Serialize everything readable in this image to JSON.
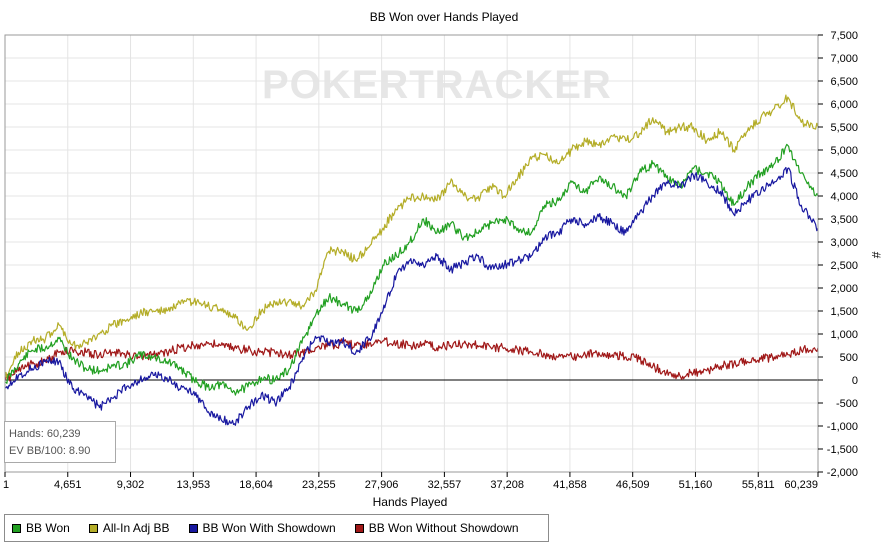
{
  "chart_data": {
    "type": "line",
    "title": "BB Won over Hands Played",
    "xlabel": "Hands Played",
    "ylabel": "#",
    "watermark": "POKERTRACKER",
    "xlim": [
      1,
      60239
    ],
    "ylim": [
      -2000,
      7500
    ],
    "x_ticks": [
      1,
      4651,
      9302,
      13953,
      18604,
      23255,
      27906,
      32557,
      37208,
      41858,
      46509,
      51160,
      55811,
      60239
    ],
    "x_tick_labels": [
      "1",
      "4,651",
      "9,302",
      "13,953",
      "18,604",
      "23,255",
      "27,906",
      "32,557",
      "37,208",
      "41,858",
      "46,509",
      "51,160",
      "55,811",
      "60,239"
    ],
    "y_ticks": [
      -2000,
      -1500,
      -1000,
      -500,
      0,
      500,
      1000,
      1500,
      2000,
      2500,
      3000,
      3500,
      4000,
      4500,
      5000,
      5500,
      6000,
      6500,
      7000,
      7500
    ],
    "y_tick_labels": [
      "-2,000",
      "-1,500",
      "-1,000",
      "-500",
      "0",
      "500",
      "1,000",
      "1,500",
      "2,000",
      "2,500",
      "3,000",
      "3,500",
      "4,000",
      "4,500",
      "5,000",
      "5,500",
      "6,000",
      "6,500",
      "7,000",
      "7,500"
    ],
    "grid": true,
    "legend_position": "bottom-left",
    "x": [
      1,
      1000,
      2000,
      3000,
      4000,
      5000,
      6000,
      7000,
      8000,
      9000,
      10000,
      11000,
      12000,
      13000,
      14000,
      15000,
      16000,
      17000,
      18000,
      19000,
      20000,
      21000,
      22000,
      23000,
      24000,
      25000,
      26000,
      27000,
      28000,
      29000,
      30000,
      31000,
      32000,
      33000,
      34000,
      35000,
      36000,
      37000,
      38000,
      39000,
      40000,
      41000,
      42000,
      43000,
      44000,
      45000,
      46000,
      47000,
      48000,
      49000,
      50000,
      51000,
      52000,
      53000,
      54000,
      55000,
      56000,
      57000,
      58000,
      59000,
      60239
    ],
    "series": [
      {
        "name": "BB Won",
        "color": "#22a022",
        "values": [
          -50,
          350,
          650,
          700,
          900,
          450,
          250,
          200,
          300,
          350,
          550,
          500,
          400,
          250,
          0,
          -150,
          -100,
          -250,
          -150,
          50,
          0,
          200,
          800,
          1400,
          1800,
          1650,
          1500,
          1800,
          2500,
          2700,
          3000,
          3500,
          3200,
          3400,
          3100,
          3200,
          3400,
          3500,
          3300,
          3200,
          3800,
          3900,
          4300,
          4100,
          4400,
          4200,
          4000,
          4500,
          4700,
          4400,
          4200,
          4600,
          4500,
          4300,
          3800,
          4200,
          4500,
          4700,
          5100,
          4500,
          4000
        ]
      },
      {
        "name": "All-In Adj BB",
        "color": "#b4ad28",
        "values": [
          50,
          600,
          850,
          900,
          1200,
          750,
          800,
          1000,
          1200,
          1300,
          1450,
          1500,
          1500,
          1650,
          1700,
          1600,
          1550,
          1350,
          1100,
          1500,
          1700,
          1700,
          1600,
          1950,
          2800,
          2800,
          2600,
          2900,
          3300,
          3700,
          3950,
          4000,
          3900,
          4300,
          4000,
          3950,
          4200,
          4000,
          4400,
          4800,
          4900,
          4700,
          5000,
          5200,
          5100,
          5300,
          5200,
          5350,
          5700,
          5400,
          5500,
          5500,
          5200,
          5400,
          5000,
          5400,
          5700,
          5900,
          6150,
          5600,
          5500
        ]
      },
      {
        "name": "BB Won With Showdown",
        "color": "#1818a0",
        "values": [
          -150,
          100,
          250,
          400,
          400,
          -200,
          -300,
          -600,
          -400,
          -150,
          0,
          100,
          50,
          -200,
          -250,
          -700,
          -850,
          -950,
          -600,
          -300,
          -500,
          -200,
          400,
          950,
          800,
          850,
          600,
          900,
          1500,
          2300,
          2600,
          2500,
          2700,
          2400,
          2550,
          2700,
          2400,
          2500,
          2600,
          2700,
          3100,
          3200,
          3500,
          3400,
          3550,
          3400,
          3200,
          3600,
          4000,
          4300,
          4200,
          4450,
          4300,
          4100,
          3600,
          3900,
          4100,
          4300,
          4600,
          3800,
          3300
        ]
      },
      {
        "name": "BB Won Without Showdown",
        "color": "#a01818",
        "values": [
          0,
          200,
          350,
          400,
          600,
          650,
          600,
          550,
          600,
          550,
          500,
          550,
          600,
          700,
          750,
          800,
          750,
          700,
          650,
          600,
          600,
          550,
          600,
          700,
          750,
          800,
          750,
          800,
          850,
          800,
          750,
          800,
          700,
          750,
          800,
          750,
          700,
          700,
          650,
          600,
          550,
          500,
          500,
          550,
          600,
          550,
          500,
          450,
          300,
          150,
          100,
          150,
          200,
          300,
          350,
          400,
          450,
          500,
          550,
          650,
          700
        ]
      }
    ]
  },
  "info": {
    "hands_text": "Hands: 60,239",
    "ev_text": "EV BB/100: 8.90"
  }
}
